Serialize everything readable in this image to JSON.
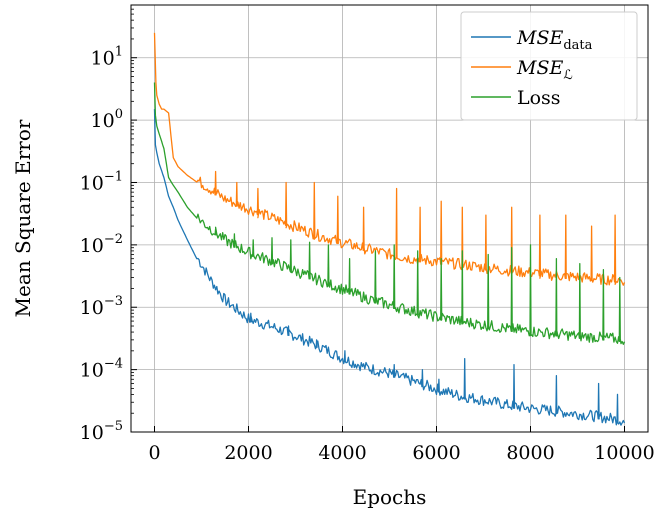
{
  "chart_data": {
    "type": "line",
    "title": "",
    "xlabel": "Epochs",
    "ylabel": "Mean Square Error",
    "xlim": [
      -500,
      10500
    ],
    "ylim": [
      1e-05,
      70
    ],
    "yscale": "log",
    "grid": true,
    "legend_position": "top-right",
    "x_ticks": [
      0,
      2000,
      4000,
      6000,
      8000,
      10000
    ],
    "x_tick_labels": [
      "0",
      "2000",
      "4000",
      "6000",
      "8000",
      "10000"
    ],
    "y_ticks": [
      1e-05,
      0.0001,
      0.001,
      0.01,
      0.1,
      1,
      10
    ],
    "y_tick_labels": [
      {
        "base": "10",
        "exp": "−5"
      },
      {
        "base": "10",
        "exp": "−4"
      },
      {
        "base": "10",
        "exp": "−3"
      },
      {
        "base": "10",
        "exp": "−2"
      },
      {
        "base": "10",
        "exp": "−1"
      },
      {
        "base": "10",
        "exp": "0"
      },
      {
        "base": "10",
        "exp": "1"
      }
    ],
    "series": [
      {
        "name": "MSE_data",
        "legend_main": "MSE",
        "legend_sub": "data",
        "color": "#1f77b4",
        "x": [
          0,
          20,
          50,
          100,
          200,
          300,
          400,
          500,
          700,
          900,
          1200,
          1500,
          2000,
          2500,
          3000,
          3500,
          4000,
          4500,
          5000,
          5500,
          6000,
          6500,
          7000,
          7500,
          8000,
          8500,
          9000,
          9500,
          10000
        ],
        "values": [
          1.5,
          0.4,
          0.3,
          0.2,
          0.12,
          0.06,
          0.04,
          0.025,
          0.012,
          0.006,
          0.0025,
          0.0012,
          0.0006,
          0.00045,
          0.00032,
          0.00022,
          0.00014,
          0.0001,
          8e-05,
          6e-05,
          4.5e-05,
          3.5e-05,
          3e-05,
          2.5e-05,
          2.2e-05,
          2e-05,
          1.8e-05,
          1.6e-05,
          1.4e-05
        ],
        "spikes": [
          [
            2050,
            0.0008
          ],
          [
            2850,
            0.0005
          ],
          [
            3450,
            0.0003
          ],
          [
            4050,
            0.0002
          ],
          [
            5100,
            0.00012
          ],
          [
            5700,
            0.0001
          ],
          [
            6050,
            7e-05
          ],
          [
            6600,
            0.00015
          ],
          [
            7650,
            0.00012
          ],
          [
            8550,
            8e-05
          ],
          [
            9450,
            6e-05
          ],
          [
            9850,
            4e-05
          ]
        ]
      },
      {
        "name": "MSE_L",
        "legend_main": "MSE",
        "legend_sub": "ℒ",
        "color": "#ff7f0e",
        "x": [
          0,
          30,
          50,
          100,
          150,
          200,
          300,
          400,
          500,
          700,
          1000,
          1500,
          2000,
          2500,
          3000,
          3500,
          4000,
          4500,
          5000,
          5500,
          6000,
          6500,
          7000,
          7500,
          8000,
          8500,
          9000,
          9500,
          10000
        ],
        "values": [
          25,
          4,
          2.5,
          1.8,
          1.5,
          1.5,
          1.3,
          0.25,
          0.18,
          0.13,
          0.09,
          0.05,
          0.035,
          0.025,
          0.018,
          0.013,
          0.01,
          0.008,
          0.0065,
          0.0055,
          0.005,
          0.0045,
          0.004,
          0.0036,
          0.0033,
          0.003,
          0.0028,
          0.0026,
          0.0025
        ],
        "spikes": [
          [
            1300,
            0.15
          ],
          [
            1750,
            0.1
          ],
          [
            2200,
            0.08
          ],
          [
            2800,
            0.1
          ],
          [
            3400,
            0.1
          ],
          [
            3900,
            0.06
          ],
          [
            4450,
            0.04
          ],
          [
            5150,
            0.08
          ],
          [
            5650,
            0.04
          ],
          [
            6100,
            0.05
          ],
          [
            6550,
            0.04
          ],
          [
            7050,
            0.03
          ],
          [
            7600,
            0.04
          ],
          [
            8200,
            0.03
          ],
          [
            8750,
            0.03
          ],
          [
            9300,
            0.02
          ],
          [
            9800,
            0.03
          ]
        ]
      },
      {
        "name": "Loss",
        "legend_main": "Loss",
        "legend_sub": "",
        "color": "#2ca02c",
        "x": [
          0,
          20,
          50,
          100,
          200,
          300,
          400,
          500,
          700,
          1000,
          1500,
          2000,
          2500,
          3000,
          3500,
          4000,
          4500,
          5000,
          5500,
          6000,
          6500,
          7000,
          7500,
          8000,
          8500,
          9000,
          9500,
          10000
        ],
        "values": [
          4,
          1.2,
          0.8,
          0.6,
          0.35,
          0.12,
          0.09,
          0.07,
          0.04,
          0.022,
          0.011,
          0.007,
          0.005,
          0.0035,
          0.0025,
          0.0018,
          0.0013,
          0.001,
          0.0008,
          0.00065,
          0.00055,
          0.00048,
          0.00042,
          0.00038,
          0.00035,
          0.00032,
          0.0003,
          0.00028
        ],
        "spikes": [
          [
            1300,
            0.018
          ],
          [
            1700,
            0.015
          ],
          [
            2100,
            0.012
          ],
          [
            2500,
            0.013
          ],
          [
            2900,
            0.012
          ],
          [
            3300,
            0.011
          ],
          [
            3700,
            0.01
          ],
          [
            4150,
            0.006
          ],
          [
            4700,
            0.008
          ],
          [
            5100,
            0.01
          ],
          [
            5600,
            0.008
          ],
          [
            6100,
            0.006
          ],
          [
            6550,
            0.008
          ],
          [
            7100,
            0.007
          ],
          [
            7600,
            0.009
          ],
          [
            8000,
            0.01
          ],
          [
            8550,
            0.006
          ],
          [
            9050,
            0.005
          ],
          [
            9550,
            0.004
          ],
          [
            9900,
            0.003
          ]
        ]
      }
    ]
  }
}
